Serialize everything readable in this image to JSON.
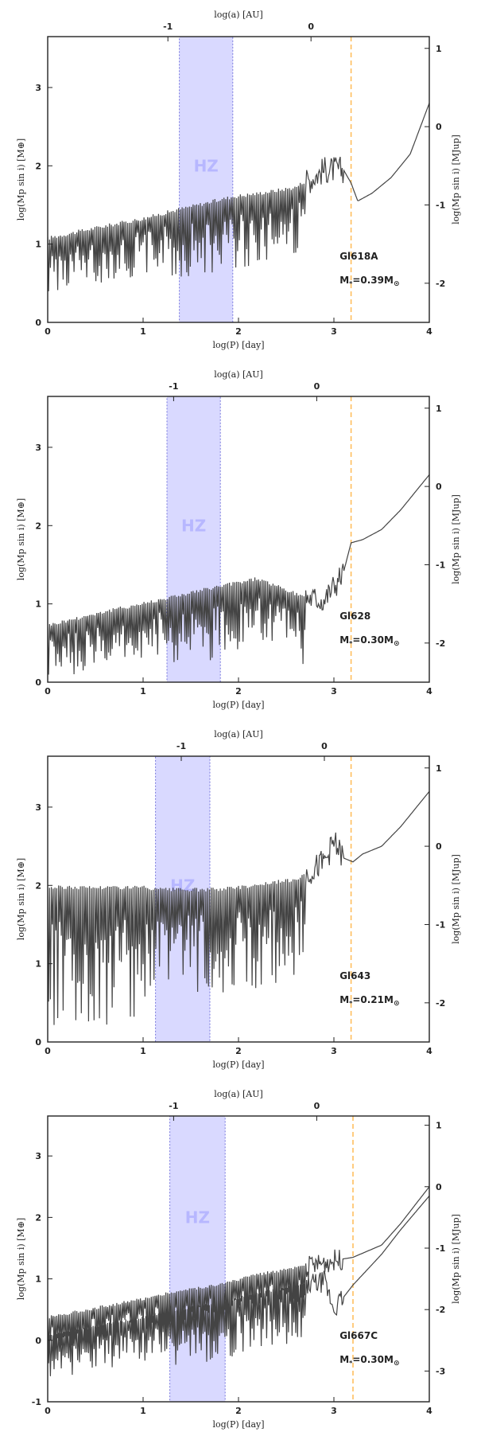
{
  "colors": {
    "hz_fill": "#d9d9ff",
    "hz_edge": "#7777dd",
    "line": "#444444",
    "star_line": "#ffbb55"
  },
  "chart_data": [
    {
      "type": "line",
      "star": "Gl618A",
      "mass_label": "M",
      "mass_sub": "*",
      "mass_eq": "=0.39M",
      "mass_sun": "⊙",
      "hz_label": "HZ",
      "xlabel": "log(P) [day]",
      "ylabel": "log(Mp sin i) [M⊕]",
      "ylabel_right": "log(Mp sin i) [MJup]",
      "top_label": "log(a) [AU]",
      "xlim": [
        0,
        4
      ],
      "ylim": [
        0,
        3.65
      ],
      "x_ticks": [
        "0",
        "1",
        "2",
        "3",
        "4"
      ],
      "y_ticks": [
        "0",
        "1",
        "2",
        "3"
      ],
      "y_tick_values": [
        0,
        1,
        2,
        3
      ],
      "right_ticks": [
        "-2",
        "-1",
        "0",
        "1"
      ],
      "right_tick_values": [
        -2,
        -1,
        0,
        1
      ],
      "top_ticks": [
        "-1",
        "0"
      ],
      "top_tick_positions_logP": [
        1.26,
        2.76
      ],
      "hz": [
        1.38,
        1.94
      ],
      "star_line_logP": 3.18,
      "curves": [
        {
          "spiky": true,
          "x": [
            0,
            0.5,
            1.0,
            1.38,
            1.94,
            2.2,
            2.6,
            2.9,
            3.1,
            3.18,
            3.25,
            3.4,
            3.6,
            3.8,
            4.0
          ],
          "y": [
            1.05,
            1.18,
            1.3,
            1.42,
            1.58,
            1.62,
            1.7,
            1.95,
            1.95,
            1.78,
            1.55,
            1.65,
            1.85,
            2.15,
            2.8
          ]
        }
      ]
    },
    {
      "type": "line",
      "star": "Gl628",
      "mass_label": "M",
      "mass_sub": "*",
      "mass_eq": "=0.30M",
      "mass_sun": "⊙",
      "hz_label": "HZ",
      "xlabel": "log(P) [day]",
      "ylabel": "log(Mp sin i) [M⊕]",
      "ylabel_right": "log(Mp sin i) [MJup]",
      "top_label": "log(a) [AU]",
      "xlim": [
        0,
        4
      ],
      "ylim": [
        0,
        3.65
      ],
      "x_ticks": [
        "0",
        "1",
        "2",
        "3",
        "4"
      ],
      "y_ticks": [
        "0",
        "1",
        "2",
        "3"
      ],
      "y_tick_values": [
        0,
        1,
        2,
        3
      ],
      "right_ticks": [
        "-2",
        "-1",
        "0",
        "1"
      ],
      "right_tick_values": [
        -2,
        -1,
        0,
        1
      ],
      "top_ticks": [
        "-1",
        "0"
      ],
      "top_tick_positions_logP": [
        1.32,
        2.82
      ],
      "hz": [
        1.25,
        1.81
      ],
      "star_line_logP": 3.18,
      "curves": [
        {
          "spiky": true,
          "x": [
            0,
            0.5,
            1.0,
            1.25,
            1.81,
            2.2,
            2.6,
            2.9,
            3.1,
            3.18,
            3.3,
            3.5,
            3.7,
            4.0
          ],
          "y": [
            0.7,
            0.85,
            0.98,
            1.05,
            1.2,
            1.3,
            1.1,
            1.05,
            1.4,
            1.78,
            1.82,
            1.95,
            2.2,
            2.65
          ]
        }
      ]
    },
    {
      "type": "line",
      "star": "Gl643",
      "mass_label": "M",
      "mass_sub": "*",
      "mass_eq": "=0.21M",
      "mass_sun": "⊙",
      "hz_label": "HZ",
      "xlabel": "log(P) [day]",
      "ylabel": "log(Mp sin i) [M⊕]",
      "ylabel_right": "log(Mp sin i) [MJup]",
      "top_label": "log(a) [AU]",
      "xlim": [
        0,
        4
      ],
      "ylim": [
        0,
        3.65
      ],
      "x_ticks": [
        "0",
        "1",
        "2",
        "3",
        "4"
      ],
      "y_ticks": [
        "0",
        "1",
        "2",
        "3"
      ],
      "y_tick_values": [
        0,
        1,
        2,
        3
      ],
      "right_ticks": [
        "-2",
        "-1",
        "0",
        "1"
      ],
      "right_tick_values": [
        -2,
        -1,
        0,
        1
      ],
      "top_ticks": [
        "-1",
        "0"
      ],
      "top_tick_positions_logP": [
        1.4,
        2.9
      ],
      "hz": [
        1.13,
        1.7
      ],
      "star_line_logP": 3.18,
      "curves": [
        {
          "spiky": true,
          "dense": true,
          "x": [
            0,
            0.5,
            1.0,
            1.13,
            1.7,
            2.0,
            2.3,
            2.6,
            2.9,
            3.0,
            3.1,
            3.2,
            3.3,
            3.5,
            3.7,
            4.0
          ],
          "y": [
            1.95,
            1.95,
            1.95,
            1.92,
            1.92,
            1.95,
            2.0,
            2.05,
            2.3,
            2.55,
            2.35,
            2.3,
            2.4,
            2.5,
            2.75,
            3.2
          ]
        }
      ]
    },
    {
      "type": "line",
      "star": "Gl667C",
      "mass_label": "M",
      "mass_sub": "*",
      "mass_eq": "=0.30M",
      "mass_sun": "⊙",
      "hz_label": "HZ",
      "xlabel": "log(P) [day]",
      "ylabel": "log(Mp sin i) [M⊕]",
      "ylabel_right": "log(Mp sin i) [MJup]",
      "top_label": "log(a) [AU]",
      "xlim": [
        0,
        4
      ],
      "ylim": [
        -1,
        3.65
      ],
      "x_ticks": [
        "0",
        "1",
        "2",
        "3",
        "4"
      ],
      "y_ticks": [
        "-1",
        "0",
        "1",
        "2",
        "3"
      ],
      "y_tick_values": [
        -1,
        0,
        1,
        2,
        3
      ],
      "right_ticks": [
        "-3",
        "-2",
        "-1",
        "0",
        "1"
      ],
      "right_tick_values": [
        -3,
        -2,
        -1,
        0,
        1
      ],
      "top_ticks": [
        "-1",
        "0"
      ],
      "top_tick_positions_logP": [
        1.32,
        2.82
      ],
      "hz": [
        1.28,
        1.86
      ],
      "star_line_logP": 3.2,
      "curves": [
        {
          "spiky": true,
          "x": [
            0,
            0.5,
            1.0,
            1.28,
            1.86,
            2.2,
            2.6,
            3.0,
            3.2,
            3.5,
            3.7,
            4.0
          ],
          "y": [
            0.35,
            0.5,
            0.65,
            0.75,
            0.9,
            1.05,
            1.15,
            1.3,
            1.35,
            1.55,
            1.9,
            2.5
          ]
        },
        {
          "spiky": true,
          "x": [
            0,
            0.5,
            1.0,
            1.28,
            1.86,
            2.2,
            2.6,
            2.9,
            3.0,
            3.2,
            3.5,
            3.7,
            4.0
          ],
          "y": [
            0.05,
            0.2,
            0.35,
            0.45,
            0.6,
            0.75,
            0.85,
            0.95,
            0.5,
            0.9,
            1.4,
            1.8,
            2.35
          ]
        }
      ]
    }
  ]
}
